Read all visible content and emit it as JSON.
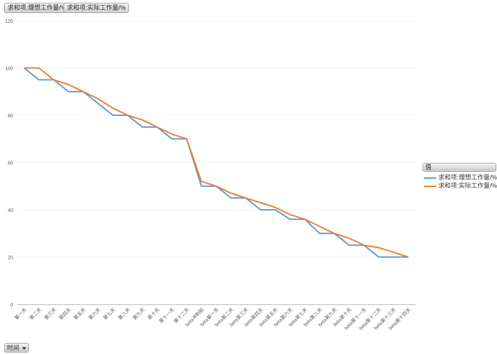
{
  "field_buttons": [
    "求和项:理想工作量/%",
    "求和项:实际工作量/%"
  ],
  "legend": {
    "title": "值"
  },
  "axis_field": {
    "label": "时间"
  },
  "colors": {
    "ideal": "#5b9bd5",
    "actual": "#ed7d31",
    "grid": "#d9d9d9"
  },
  "chart_data": {
    "type": "line",
    "title": "",
    "xlabel": "",
    "ylabel": "",
    "ylim": [
      0,
      120
    ],
    "yticks": [
      0,
      20,
      40,
      60,
      80,
      100,
      120
    ],
    "grid": true,
    "legend_position": "right",
    "categories": [
      "第一天",
      "第二天",
      "第三天",
      "第四天",
      "第五天",
      "第六天",
      "第七天",
      "第八天",
      "第九天",
      "第十天",
      "第十一天",
      "第十二天",
      "beta冲刺前",
      "beta第一天",
      "beta第二天",
      "beta第三天",
      "beta第四天",
      "beta第五天",
      "beta第六天",
      "beta第七天",
      "beta第八天",
      "beta第九天",
      "beta第十天",
      "beta第十一天",
      "beta第十二天",
      "beta第十三天",
      "beta第十四天"
    ],
    "series": [
      {
        "name": "求和项:理想工作量/%",
        "color": "#5b9bd5",
        "values": [
          100,
          95,
          95,
          90,
          90,
          85,
          80,
          80,
          75,
          75,
          70,
          70,
          50,
          50,
          45,
          45,
          40,
          40,
          36,
          36,
          30,
          30,
          25,
          25,
          20,
          20,
          20
        ]
      },
      {
        "name": "求和项:实际工作量/%",
        "color": "#ed7d31",
        "values": [
          100,
          100,
          95,
          93,
          90,
          87,
          83,
          80,
          78,
          75,
          72,
          70,
          52,
          50,
          47,
          45,
          43,
          41,
          38,
          36,
          33,
          30,
          28,
          25,
          24,
          22,
          20
        ]
      }
    ]
  }
}
